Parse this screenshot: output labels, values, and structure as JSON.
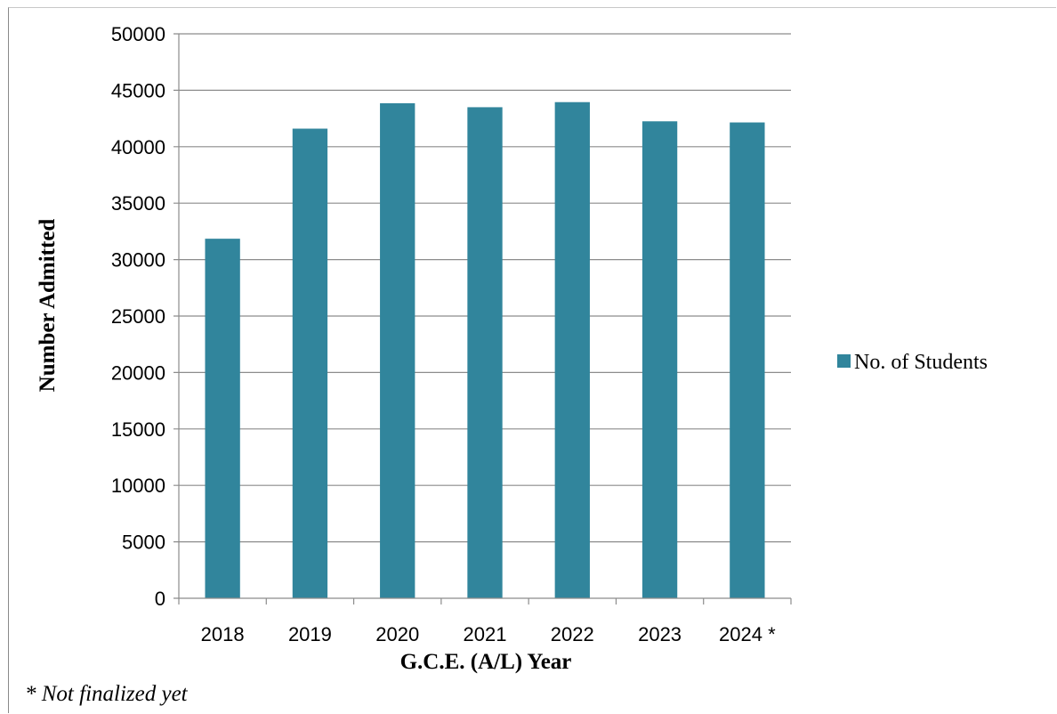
{
  "chart_data": {
    "type": "bar",
    "categories": [
      "2018",
      "2019",
      "2020",
      "2021",
      "2022",
      "2023",
      "2024 *"
    ],
    "series": [
      {
        "name": "No. of Students",
        "values": [
          31850,
          41600,
          43850,
          43500,
          43950,
          42250,
          42150
        ],
        "color": "#31859c"
      }
    ],
    "title": "",
    "xlabel": "G.C.E. (A/L) Year",
    "ylabel": "Number Admitted",
    "ylim": [
      0,
      50000
    ],
    "yticks": [
      0,
      5000,
      10000,
      15000,
      20000,
      25000,
      30000,
      35000,
      40000,
      45000,
      50000
    ],
    "grid": true,
    "legend_position": "right"
  },
  "footnote": "* Not finalized yet"
}
